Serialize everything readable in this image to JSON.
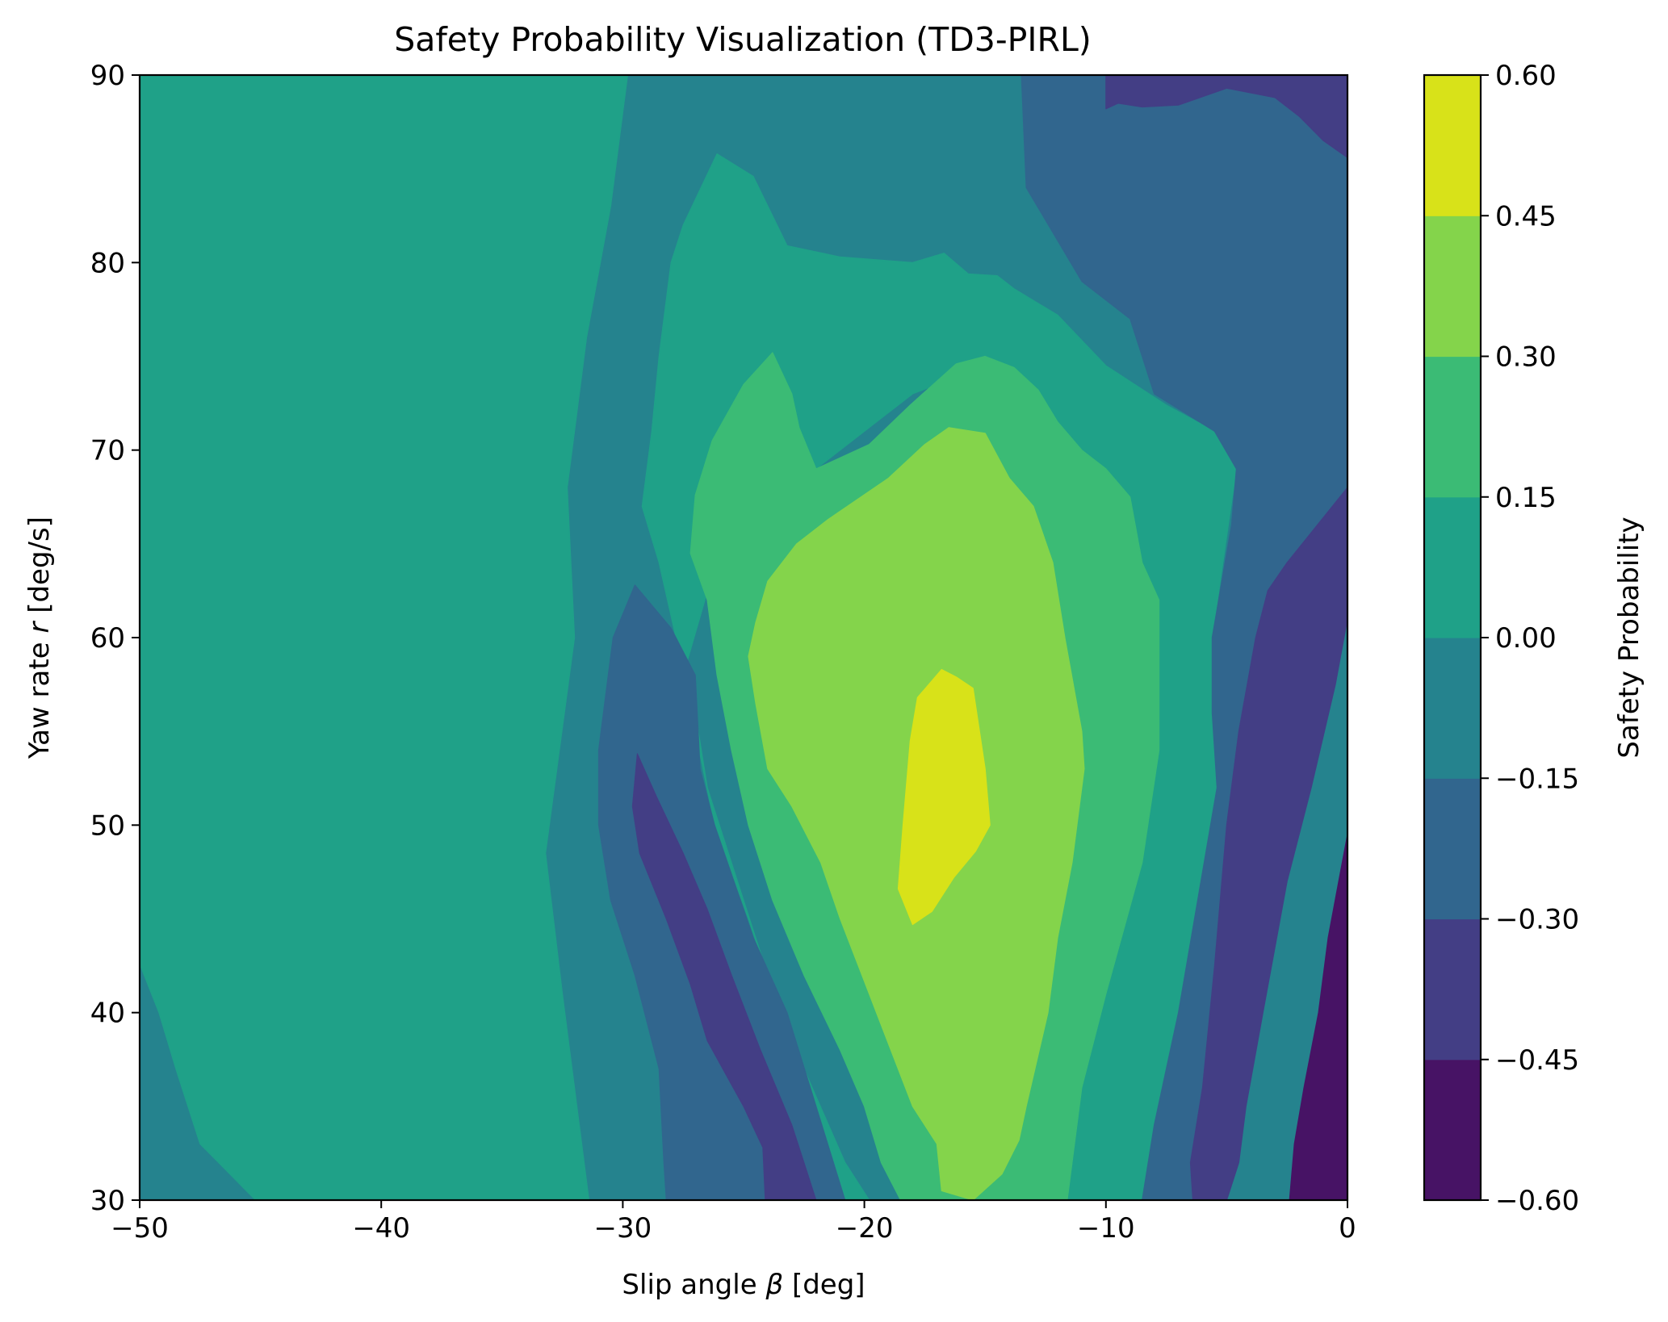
{
  "chart_data": {
    "type": "heatmap",
    "subtype": "filled-contour",
    "title": "Safety Probability Visualization (TD3-PIRL)",
    "xlabel": {
      "pre": "Slip angle ",
      "sym": "β",
      "post": " [deg]"
    },
    "ylabel": {
      "pre": "Yaw rate ",
      "sym": "r",
      "post": " [deg/s]"
    },
    "xlim": [
      -50,
      0
    ],
    "ylim": [
      30,
      90
    ],
    "xticks": [
      -50,
      -40,
      -30,
      -20,
      -10,
      0
    ],
    "xtick_labels": [
      "−50",
      "−40",
      "−30",
      "−20",
      "−10",
      "0"
    ],
    "yticks": [
      30,
      40,
      50,
      60,
      70,
      80,
      90
    ],
    "ytick_labels": [
      "30",
      "40",
      "50",
      "60",
      "70",
      "80",
      "90"
    ],
    "colorbar": {
      "label": "Safety Probability",
      "levels": [
        -0.6,
        -0.45,
        -0.3,
        -0.15,
        0.0,
        0.15,
        0.3,
        0.45,
        0.6
      ],
      "tick_labels": [
        "−0.60",
        "−0.45",
        "−0.30",
        "−0.15",
        "0.00",
        "0.15",
        "0.30",
        "0.45",
        "0.60"
      ],
      "colors": [
        "#471365",
        "#433e85",
        "#31668e",
        "#25838e",
        "#1fa188",
        "#3bbb75",
        "#84d44b",
        "#d8e219"
      ]
    },
    "grid": false,
    "contours": [
      {
        "name": "band-neg-015-to-0",
        "level_index": 3,
        "points": [
          [
            -29.8,
            90
          ],
          [
            -50,
            90
          ],
          [
            -50,
            30
          ],
          [
            -22.5,
            30
          ],
          [
            -7.5,
            30
          ],
          [
            0,
            30
          ],
          [
            0,
            90
          ],
          [
            -13.5,
            90
          ],
          [
            -13.3,
            84
          ],
          [
            -11,
            79
          ],
          [
            -9,
            77
          ],
          [
            -8,
            73
          ],
          [
            -5.5,
            71
          ],
          [
            -4.6,
            69
          ],
          [
            -4.8,
            66
          ],
          [
            -5.6,
            60
          ],
          [
            -5.6,
            56
          ],
          [
            -5.4,
            52
          ],
          [
            -7,
            40
          ],
          [
            -8,
            34
          ],
          [
            -8.4,
            30
          ],
          [
            -31.4,
            30
          ],
          [
            -32.5,
            41
          ],
          [
            -33.2,
            48.5
          ],
          [
            -32,
            60
          ],
          [
            -32.3,
            68
          ],
          [
            -31.5,
            76
          ],
          [
            -30.5,
            83
          ]
        ]
      },
      {
        "name": "band-0-to-015-left",
        "level_index": 4,
        "points": [
          [
            -50,
            90
          ],
          [
            -29.8,
            90
          ],
          [
            -30.5,
            83
          ],
          [
            -31.5,
            76
          ],
          [
            -32.3,
            68
          ],
          [
            -32,
            60
          ],
          [
            -33.2,
            48.5
          ],
          [
            -32.5,
            41
          ],
          [
            -31.4,
            30
          ],
          [
            -45.2,
            30
          ],
          [
            -47.5,
            33
          ],
          [
            -48.5,
            37
          ],
          [
            -49.2,
            40
          ],
          [
            -50,
            42.6
          ]
        ]
      },
      {
        "name": "band-0-to-015-inner",
        "level_index": 4,
        "points": [
          [
            -26.1,
            85.8
          ],
          [
            -24.6,
            84.6
          ],
          [
            -23.2,
            80.9
          ],
          [
            -21,
            80.3
          ],
          [
            -18,
            80
          ],
          [
            -16.7,
            80.5
          ],
          [
            -15.7,
            79.4
          ],
          [
            -14.5,
            79.3
          ],
          [
            -13.8,
            78.6
          ],
          [
            -12,
            77.2
          ],
          [
            -10,
            74.5
          ],
          [
            -7.5,
            72.4
          ],
          [
            -5.5,
            71
          ],
          [
            -4.6,
            69
          ],
          [
            -5.6,
            60
          ],
          [
            -5.6,
            56
          ],
          [
            -5.4,
            52
          ],
          [
            -7,
            40
          ],
          [
            -8,
            34
          ],
          [
            -8.4,
            30
          ],
          [
            -9.8,
            30
          ],
          [
            -11.6,
            30
          ],
          [
            -12.2,
            35
          ],
          [
            -12.8,
            40
          ],
          [
            -13.2,
            45
          ],
          [
            -13.5,
            55
          ],
          [
            -13.8,
            65
          ],
          [
            -14,
            70
          ],
          [
            -16,
            74
          ],
          [
            -18,
            73
          ],
          [
            -19,
            72
          ],
          [
            -21,
            70
          ],
          [
            -22,
            69
          ],
          [
            -22.7,
            71.2
          ],
          [
            -23,
            73
          ],
          [
            -23.8,
            75.2
          ],
          [
            -25.5,
            70
          ],
          [
            -26,
            66
          ],
          [
            -26.6,
            62
          ],
          [
            -27.5,
            58
          ],
          [
            -27,
            55
          ],
          [
            -26.2,
            50
          ],
          [
            -24.8,
            45
          ],
          [
            -23.5,
            40
          ],
          [
            -22.3,
            35
          ],
          [
            -20.8,
            30
          ],
          [
            -19.8,
            30
          ],
          [
            -20.8,
            32
          ],
          [
            -22.5,
            37
          ],
          [
            -24,
            42
          ],
          [
            -25.5,
            48
          ],
          [
            -26.5,
            52
          ],
          [
            -27,
            56
          ],
          [
            -27.8,
            60
          ],
          [
            -28.5,
            64
          ],
          [
            -29.2,
            67
          ],
          [
            -28.8,
            71
          ],
          [
            -28.5,
            75
          ],
          [
            -28,
            80
          ],
          [
            -27.5,
            82
          ]
        ]
      },
      {
        "name": "band-015-to-030",
        "level_index": 5,
        "points": [
          [
            -23.8,
            75.2
          ],
          [
            -23,
            73
          ],
          [
            -22.7,
            71.2
          ],
          [
            -22,
            69
          ],
          [
            -19.8,
            70.3
          ],
          [
            -18.1,
            72.4
          ],
          [
            -16.2,
            74.6
          ],
          [
            -15,
            75
          ],
          [
            -13.8,
            74.4
          ],
          [
            -12.8,
            73.2
          ],
          [
            -12,
            71.5
          ],
          [
            -11,
            70
          ],
          [
            -10,
            69
          ],
          [
            -9,
            67.5
          ],
          [
            -8.5,
            64
          ],
          [
            -7.8,
            62
          ],
          [
            -7.8,
            58
          ],
          [
            -7.8,
            54
          ],
          [
            -8.5,
            48
          ],
          [
            -10,
            41
          ],
          [
            -11,
            36
          ],
          [
            -11.6,
            30
          ],
          [
            -15.5,
            30
          ],
          [
            -18.5,
            30
          ],
          [
            -19.3,
            32
          ],
          [
            -20,
            35
          ],
          [
            -21,
            38
          ],
          [
            -22.5,
            42
          ],
          [
            -23.8,
            46
          ],
          [
            -24.8,
            50
          ],
          [
            -25.5,
            54
          ],
          [
            -26.1,
            58
          ],
          [
            -26.5,
            62
          ],
          [
            -27.2,
            64.5
          ],
          [
            -27,
            67.6
          ],
          [
            -26.3,
            70.5
          ],
          [
            -25,
            73.5
          ]
        ]
      },
      {
        "name": "band-030-to-045",
        "level_index": 6,
        "points": [
          [
            -24.5,
            60.8
          ],
          [
            -24,
            63
          ],
          [
            -22.8,
            65
          ],
          [
            -21.5,
            66.3
          ],
          [
            -19,
            68.5
          ],
          [
            -17.5,
            70.3
          ],
          [
            -16.5,
            71.2
          ],
          [
            -15,
            70.9
          ],
          [
            -14,
            68.5
          ],
          [
            -13,
            67
          ],
          [
            -12.2,
            64
          ],
          [
            -11.7,
            60
          ],
          [
            -11,
            55
          ],
          [
            -10.9,
            53
          ],
          [
            -11.4,
            48
          ],
          [
            -12,
            44
          ],
          [
            -12.4,
            40
          ],
          [
            -13.3,
            35
          ],
          [
            -13.6,
            33.2
          ],
          [
            -14.3,
            31.4
          ],
          [
            -15.5,
            30
          ],
          [
            -16.8,
            30.5
          ],
          [
            -17,
            33
          ],
          [
            -18,
            35
          ],
          [
            -19.2,
            39
          ],
          [
            -19.8,
            41
          ],
          [
            -21,
            45
          ],
          [
            -21.8,
            48
          ],
          [
            -23,
            51
          ],
          [
            -24,
            53
          ],
          [
            -24.5,
            56.5
          ],
          [
            -24.8,
            59
          ]
        ]
      },
      {
        "name": "band-045-to-060",
        "level_index": 7,
        "points": [
          [
            -17.8,
            56.8
          ],
          [
            -16.8,
            58.3
          ],
          [
            -16.2,
            57.9
          ],
          [
            -15.5,
            57.3
          ],
          [
            -15,
            53
          ],
          [
            -14.8,
            50
          ],
          [
            -15.4,
            48.6
          ],
          [
            -16.3,
            47.2
          ],
          [
            -17.2,
            45.4
          ],
          [
            -18,
            44.7
          ],
          [
            -18.6,
            46.6
          ],
          [
            -18.4,
            50
          ],
          [
            -18.1,
            54.5
          ]
        ]
      },
      {
        "name": "band-neg-030-to-neg-015-mid",
        "level_index": 2,
        "points": [
          [
            -30.4,
            60
          ],
          [
            -29.5,
            62.8
          ],
          [
            -28,
            60.5
          ],
          [
            -27,
            58
          ],
          [
            -26.8,
            53
          ],
          [
            -26.2,
            50
          ],
          [
            -24.6,
            44
          ],
          [
            -23.2,
            40
          ],
          [
            -22,
            35
          ],
          [
            -20.8,
            30
          ],
          [
            -28.2,
            30
          ],
          [
            -28.3,
            32
          ],
          [
            -28.5,
            37
          ],
          [
            -29.5,
            42
          ],
          [
            -30.5,
            46
          ],
          [
            -31,
            50
          ],
          [
            -31,
            54
          ],
          [
            -30.6,
            58
          ]
        ]
      },
      {
        "name": "band-neg-045-to-neg-030-mid",
        "level_index": 1,
        "points": [
          [
            -29.4,
            53.8
          ],
          [
            -28.6,
            51.5
          ],
          [
            -27.5,
            48.5
          ],
          [
            -26.5,
            45.5
          ],
          [
            -25.5,
            42
          ],
          [
            -24.3,
            38
          ],
          [
            -23,
            34
          ],
          [
            -22,
            30
          ],
          [
            -24.1,
            30
          ],
          [
            -24.2,
            32.8
          ],
          [
            -25,
            35
          ],
          [
            -26.5,
            38.5
          ],
          [
            -27.2,
            41.5
          ],
          [
            -28.2,
            45
          ],
          [
            -29.3,
            48.5
          ],
          [
            -29.6,
            51
          ]
        ]
      },
      {
        "name": "band-neg-030-to-neg-015-right",
        "level_index": 2,
        "points": [
          [
            -13.5,
            90
          ],
          [
            0,
            90
          ],
          [
            0,
            68
          ],
          [
            -2.5,
            64
          ],
          [
            -3.3,
            62.5
          ],
          [
            -3.8,
            60
          ],
          [
            -4.5,
            55
          ],
          [
            -5,
            50
          ],
          [
            -5.5,
            42.5
          ],
          [
            -6,
            36
          ],
          [
            -6.5,
            32
          ],
          [
            -6.4,
            30
          ],
          [
            -8.5,
            30
          ],
          [
            -8,
            34
          ],
          [
            -7,
            40
          ],
          [
            -5.4,
            52
          ],
          [
            -5.6,
            56
          ],
          [
            -5.6,
            60
          ],
          [
            -4.8,
            66
          ],
          [
            -4.6,
            69
          ],
          [
            -5.5,
            71
          ],
          [
            -8,
            73
          ],
          [
            -9,
            77
          ],
          [
            -11,
            79
          ],
          [
            -13.3,
            84
          ]
        ]
      },
      {
        "name": "band-neg-045-to-neg-030-right",
        "level_index": 1,
        "points": [
          [
            0,
            61
          ],
          [
            -0.5,
            57.5
          ],
          [
            -1.5,
            52
          ],
          [
            -2.5,
            47
          ],
          [
            -3.5,
            40
          ],
          [
            -4.2,
            35
          ],
          [
            -4.5,
            32
          ],
          [
            -5,
            30
          ],
          [
            -6.4,
            30
          ],
          [
            -6.5,
            32
          ],
          [
            -6,
            36
          ],
          [
            -5.5,
            42.5
          ],
          [
            -5,
            50
          ],
          [
            -4.5,
            55
          ],
          [
            -3.8,
            60
          ],
          [
            -3.3,
            62.5
          ],
          [
            -2.5,
            64
          ],
          [
            0,
            68
          ]
        ]
      },
      {
        "name": "band-neg-045-to-neg-030-topright",
        "level_index": 1,
        "points": [
          [
            -10,
            90
          ],
          [
            0,
            90
          ],
          [
            0,
            85.6
          ],
          [
            -1,
            86.5
          ],
          [
            -2,
            87.8
          ],
          [
            -3,
            88.8
          ],
          [
            -5,
            89.3
          ],
          [
            -7,
            88.4
          ],
          [
            -8.5,
            88.3
          ],
          [
            -9.5,
            88.5
          ],
          [
            -10,
            88.2
          ]
        ]
      },
      {
        "name": "band-neg-060-to-neg-045",
        "level_index": 0,
        "points": [
          [
            0,
            49.5
          ],
          [
            -0.8,
            44
          ],
          [
            -1.2,
            40
          ],
          [
            -1.8,
            36
          ],
          [
            -2.2,
            33
          ],
          [
            -2.4,
            30
          ],
          [
            0,
            30
          ]
        ]
      }
    ]
  }
}
